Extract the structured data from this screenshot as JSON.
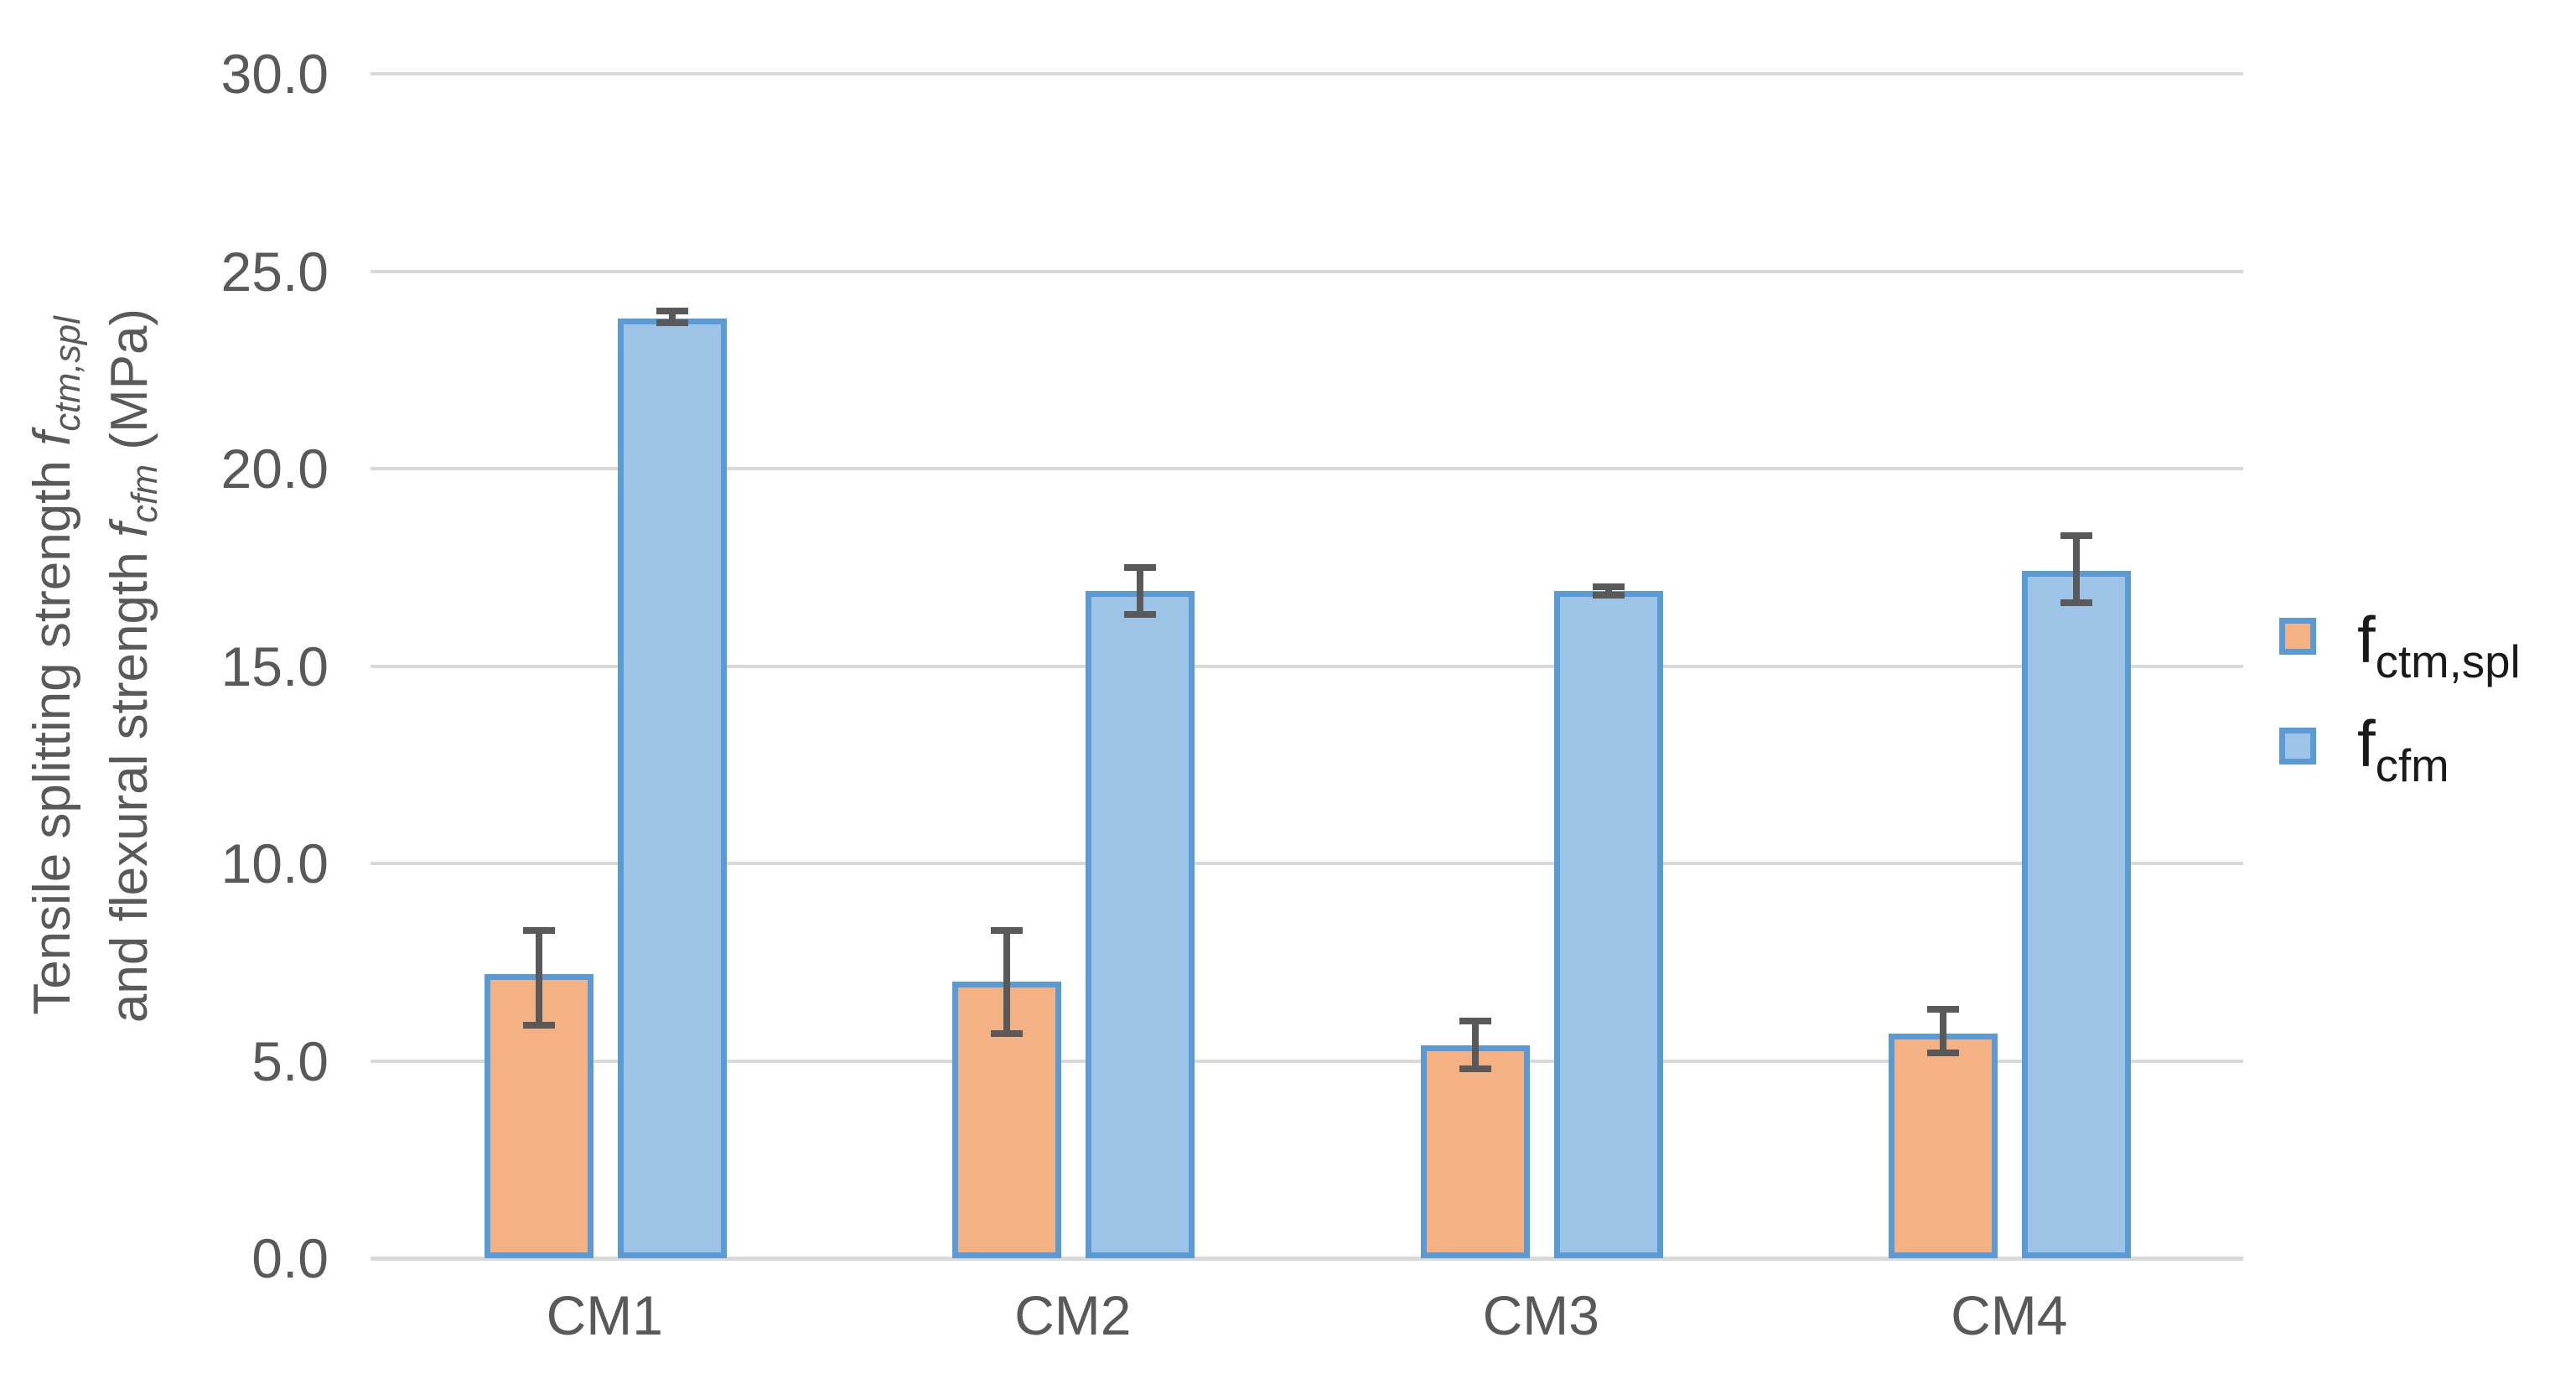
{
  "chart_data": {
    "type": "bar",
    "categories": [
      "CM1",
      "CM2",
      "CM3",
      "CM4"
    ],
    "series": [
      {
        "name": "f_ctm,spl",
        "label_main": "f",
        "label_sub": "ctm,spl",
        "values": [
          7.2,
          7.0,
          5.4,
          5.7
        ],
        "error_low": [
          5.9,
          5.7,
          4.8,
          5.2
        ],
        "error_high": [
          8.3,
          8.3,
          6.0,
          6.3
        ],
        "fill": "#F4B183",
        "border": "#5B9BD5"
      },
      {
        "name": "f_cfm",
        "label_main": "f",
        "label_sub": "cfm",
        "values": [
          23.8,
          16.9,
          16.9,
          17.4
        ],
        "error_low": [
          23.7,
          16.3,
          16.8,
          16.6
        ],
        "error_high": [
          24.0,
          17.5,
          17.0,
          18.3
        ],
        "fill": "#9DC3E6",
        "border": "#5B9BD5"
      }
    ],
    "title": "",
    "xlabel": "",
    "ylabel_line1": {
      "pre": "Tensile splitting strength ",
      "f": "f",
      "sub": "ctm,spl",
      "post": ""
    },
    "ylabel_line2": {
      "pre": "and flexural strength ",
      "f": "f",
      "sub": "cfm",
      "post": " (MPa)"
    },
    "ylim": [
      0,
      30
    ],
    "yticks": [
      "30.0",
      "25.0",
      "20.0",
      "15.0",
      "10.0",
      "5.0",
      "0.0"
    ],
    "grid": true,
    "legend_position": "right",
    "error_bars": true
  },
  "colors": {
    "gridline": "#D9D9D9",
    "axis_line": "#D9D9D9",
    "error_bar": "#595959",
    "tick_text": "#595959",
    "axis_title_text": "#595959",
    "legend_text": "#1a1a1a"
  }
}
